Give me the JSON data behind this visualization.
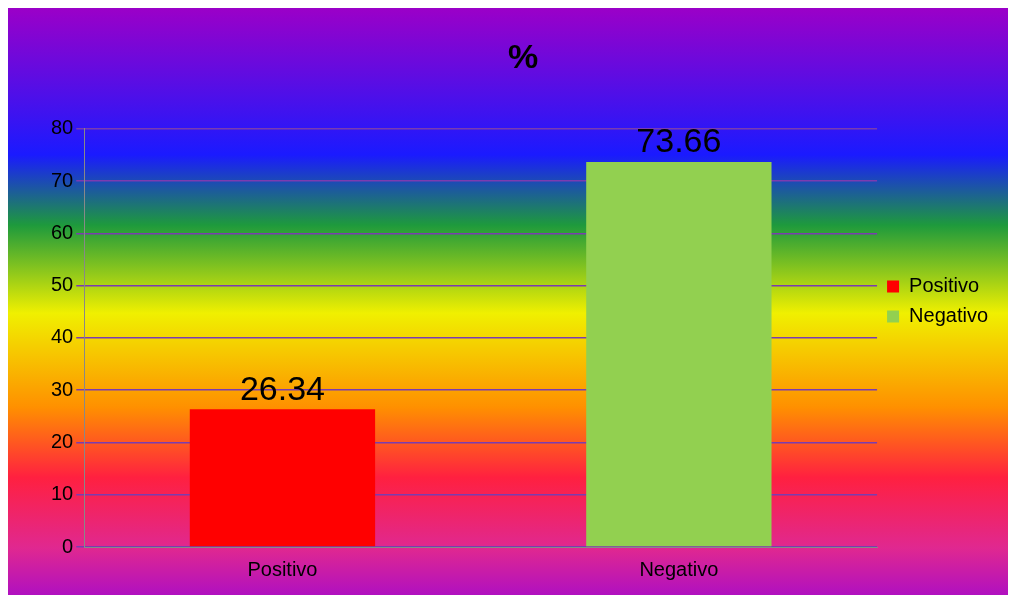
{
  "chart_data": {
    "type": "bar",
    "title": "%",
    "categories": [
      "Positivo",
      "Negativo"
    ],
    "series": [
      {
        "name": "Positivo",
        "color": "#ff0000",
        "values": [
          26.34,
          null
        ]
      },
      {
        "name": "Negativo",
        "color": "#92d050",
        "values": [
          null,
          73.66
        ]
      }
    ],
    "ylim": [
      0,
      80
    ],
    "yticks": [
      0,
      10,
      20,
      30,
      40,
      50,
      60,
      70,
      80
    ],
    "grid": "y",
    "legend": "right",
    "data_labels": true
  }
}
